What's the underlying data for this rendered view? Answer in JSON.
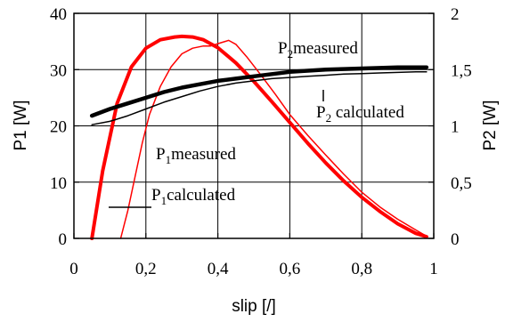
{
  "chart_data": {
    "type": "line",
    "xlabel": "slip [/]",
    "ylabel_left": "P1 [W]",
    "ylabel_right": "P2 [W]",
    "xlim": [
      0,
      1
    ],
    "ylim_left": [
      0,
      40
    ],
    "ylim_right": [
      0,
      2
    ],
    "grid": true,
    "x_tick_labels": [
      "0",
      "0,2",
      "0,4",
      "0,6",
      "0,8",
      "1"
    ],
    "y_left_tick_labels": [
      "0",
      "10",
      "20",
      "30",
      "40"
    ],
    "y_right_tick_labels": [
      "0",
      "0,5",
      "1",
      "1,5",
      "2"
    ],
    "annotations": {
      "p2_measured": {
        "main": "P",
        "sub": "2",
        "rest": "measured"
      },
      "p2_calculated": {
        "main": "P",
        "sub": "2",
        "rest": " calculated"
      },
      "p1_measured": {
        "main": "P",
        "sub": "1",
        "rest": "measured"
      },
      "p1_calculated": {
        "main": "P",
        "sub": "1",
        "rest": "calculated"
      }
    },
    "series": [
      {
        "axis": "left",
        "color": "#ff0000",
        "width": 4,
        "x": [
          0.05,
          0.08,
          0.12,
          0.16,
          0.2,
          0.24,
          0.28,
          0.3,
          0.33,
          0.36,
          0.4,
          0.45,
          0.5,
          0.55,
          0.6,
          0.65,
          0.7,
          0.75,
          0.8,
          0.85,
          0.9,
          0.95,
          0.98
        ],
        "y": [
          0,
          12,
          24,
          30.5,
          33.8,
          35.3,
          35.8,
          35.9,
          35.8,
          35.3,
          33.9,
          31.2,
          27.9,
          24.3,
          20.6,
          16.9,
          13.4,
          10.2,
          7.3,
          4.8,
          2.6,
          0.9,
          0.3
        ]
      },
      {
        "axis": "left",
        "color": "#ff0000",
        "width": 1.5,
        "x": [
          0.13,
          0.15,
          0.17,
          0.19,
          0.21,
          0.24,
          0.27,
          0.3,
          0.33,
          0.36,
          0.38,
          0.41,
          0.43,
          0.45,
          0.48,
          0.52,
          0.56,
          0.6,
          0.65,
          0.7,
          0.75,
          0.8,
          0.85,
          0.9,
          0.95,
          0.98
        ],
        "y": [
          0,
          5,
          11,
          17,
          22,
          27,
          30.5,
          32.8,
          33.8,
          34.2,
          34.2,
          34.8,
          35.2,
          34.5,
          32.3,
          29,
          25.6,
          22,
          18.3,
          14.8,
          11.4,
          8.2,
          5.6,
          3.4,
          1.5,
          0.4
        ]
      },
      {
        "axis": "right",
        "color": "#000000",
        "width": 4.5,
        "x": [
          0.05,
          0.1,
          0.15,
          0.2,
          0.25,
          0.3,
          0.35,
          0.4,
          0.45,
          0.5,
          0.55,
          0.6,
          0.65,
          0.7,
          0.75,
          0.8,
          0.85,
          0.9,
          0.95,
          0.98
        ],
        "y": [
          1.09,
          1.15,
          1.2,
          1.25,
          1.3,
          1.34,
          1.37,
          1.4,
          1.42,
          1.44,
          1.46,
          1.48,
          1.49,
          1.5,
          1.505,
          1.51,
          1.515,
          1.52,
          1.52,
          1.52
        ]
      },
      {
        "axis": "right",
        "color": "#000000",
        "width": 1.5,
        "x": [
          0.05,
          0.1,
          0.15,
          0.2,
          0.25,
          0.3,
          0.35,
          0.4,
          0.45,
          0.5,
          0.55,
          0.6,
          0.65,
          0.7,
          0.75,
          0.8,
          0.85,
          0.9,
          0.95,
          0.98
        ],
        "y": [
          1.01,
          1.04,
          1.09,
          1.15,
          1.21,
          1.26,
          1.31,
          1.35,
          1.38,
          1.4,
          1.42,
          1.43,
          1.44,
          1.45,
          1.46,
          1.465,
          1.47,
          1.475,
          1.48,
          1.48
        ]
      }
    ]
  }
}
